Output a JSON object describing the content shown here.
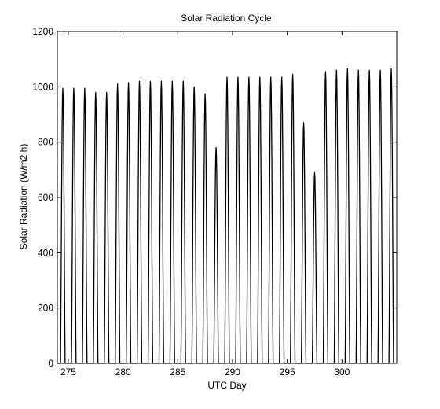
{
  "chart_data": {
    "type": "line",
    "title": "Solar Radiation Cycle",
    "xlabel": "UTC Day",
    "ylabel": "Solar Radiation (W/m2 h)",
    "xlim": [
      274,
      305
    ],
    "ylim": [
      0,
      1200
    ],
    "xticks": [
      275,
      280,
      285,
      290,
      295,
      300
    ],
    "yticks": [
      0,
      200,
      400,
      600,
      800,
      1000,
      1200
    ],
    "grid": false,
    "line_color": "#000000",
    "series": [
      {
        "peaks": [
          {
            "day": 274.5,
            "value": 995
          },
          {
            "day": 275.5,
            "value": 995
          },
          {
            "day": 276.5,
            "value": 995
          },
          {
            "day": 277.5,
            "value": 980
          },
          {
            "day": 278.5,
            "value": 980
          },
          {
            "day": 279.5,
            "value": 1010
          },
          {
            "day": 280.5,
            "value": 1015
          },
          {
            "day": 281.5,
            "value": 1020
          },
          {
            "day": 282.5,
            "value": 1020
          },
          {
            "day": 283.5,
            "value": 1020
          },
          {
            "day": 284.5,
            "value": 1020
          },
          {
            "day": 285.5,
            "value": 1020
          },
          {
            "day": 286.5,
            "value": 1000
          },
          {
            "day": 287.5,
            "value": 975
          },
          {
            "day": 288.5,
            "value": 780
          },
          {
            "day": 289.5,
            "value": 1035
          },
          {
            "day": 290.5,
            "value": 1035
          },
          {
            "day": 291.5,
            "value": 1035
          },
          {
            "day": 292.5,
            "value": 1035
          },
          {
            "day": 293.5,
            "value": 1035
          },
          {
            "day": 294.5,
            "value": 1035
          },
          {
            "day": 295.5,
            "value": 1045
          },
          {
            "day": 296.5,
            "value": 870
          },
          {
            "day": 297.5,
            "value": 690
          },
          {
            "day": 298.5,
            "value": 1055
          },
          {
            "day": 299.5,
            "value": 1060
          },
          {
            "day": 300.5,
            "value": 1065
          },
          {
            "day": 301.5,
            "value": 1060
          },
          {
            "day": 302.5,
            "value": 1060
          },
          {
            "day": 303.5,
            "value": 1060
          },
          {
            "day": 304.5,
            "value": 1065
          }
        ]
      }
    ]
  }
}
